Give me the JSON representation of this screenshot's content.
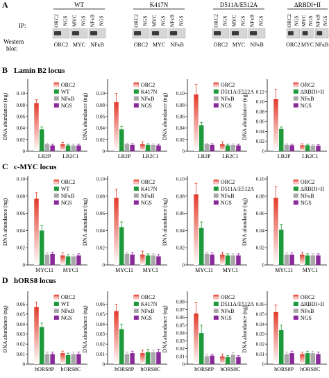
{
  "figure": {
    "panel_letters": [
      "A",
      "B",
      "C",
      "D"
    ],
    "section_titles": {
      "B": "Lamin B2 locus",
      "C": "c-MYC locus",
      "D": "hORS8 locus"
    },
    "ip_label": "IP:",
    "western_label": [
      "Western",
      "blot:"
    ],
    "conditions": [
      "WT",
      "K417N",
      "D511A/E512A",
      "ΔRBDI+II"
    ],
    "ip_lanes": [
      "ORC2",
      "NGS",
      "MYC",
      "NGS",
      "NFκB",
      "NGS"
    ],
    "western_lanes": [
      "ORC2",
      "MYC",
      "NFκB"
    ]
  },
  "chart_data": [
    {
      "type": "bar",
      "panel": "B",
      "title": "",
      "xlabel": "",
      "ylabel": "DNA abundance (ng)",
      "ylim": [
        0,
        0.12
      ],
      "yticks": [
        0,
        0.02,
        0.04,
        0.06,
        0.08,
        0.1
      ],
      "ytick_labels": [
        "0",
        "0.02",
        "0.04",
        "0.06",
        "0.08",
        "0.10"
      ],
      "categories": [
        "LB2P",
        "LB2C1"
      ],
      "series": [
        {
          "name": "ORC2",
          "values": [
            0.083,
            0.012
          ]
        },
        {
          "name": "WT",
          "values": [
            0.038,
            0.01
          ]
        },
        {
          "name": "NFκB",
          "values": [
            0.012,
            0.01
          ]
        },
        {
          "name": "NGS",
          "values": [
            0.01,
            0.01
          ]
        }
      ],
      "errors": [
        [
          0.006,
          0.003
        ],
        [
          0.004,
          0.002
        ],
        [
          0.002,
          0.002
        ],
        [
          0.002,
          0.002
        ]
      ]
    },
    {
      "type": "bar",
      "panel": "B",
      "title": "",
      "xlabel": "",
      "ylabel": "DNA abundance (ng)",
      "ylim": [
        0,
        0.12
      ],
      "yticks": [
        0,
        0.02,
        0.04,
        0.06,
        0.08,
        0.1
      ],
      "ytick_labels": [
        "0",
        "0.02",
        "0.04",
        "0.06",
        "0.08",
        "0.10"
      ],
      "categories": [
        "LB2P",
        "LB2C1"
      ],
      "series": [
        {
          "name": "ORC2",
          "values": [
            0.085,
            0.012
          ]
        },
        {
          "name": "K417N",
          "values": [
            0.038,
            0.011
          ]
        },
        {
          "name": "NFκB",
          "values": [
            0.012,
            0.011
          ]
        },
        {
          "name": "NGS",
          "values": [
            0.011,
            0.01
          ]
        }
      ],
      "errors": [
        [
          0.015,
          0.004
        ],
        [
          0.005,
          0.002
        ],
        [
          0.002,
          0.002
        ],
        [
          0.002,
          0.002
        ]
      ]
    },
    {
      "type": "bar",
      "panel": "B",
      "title": "",
      "xlabel": "",
      "ylabel": "DNA abundance (ng)",
      "ylim": [
        0,
        0.12
      ],
      "yticks": [
        0,
        0.02,
        0.04,
        0.06,
        0.08,
        0.1
      ],
      "ytick_labels": [
        "0",
        "0.02",
        "0.04",
        "0.06",
        "0.08",
        "0.10"
      ],
      "categories": [
        "LB2P",
        "LB2C1"
      ],
      "series": [
        {
          "name": "ORC2",
          "values": [
            0.098,
            0.012
          ]
        },
        {
          "name": "D511A/E512A",
          "values": [
            0.045,
            0.01
          ]
        },
        {
          "name": "NFκB",
          "values": [
            0.012,
            0.011
          ]
        },
        {
          "name": "NGS",
          "values": [
            0.011,
            0.01
          ]
        }
      ],
      "errors": [
        [
          0.018,
          0.004
        ],
        [
          0.005,
          0.002
        ],
        [
          0.002,
          0.002
        ],
        [
          0.002,
          0.002
        ]
      ]
    },
    {
      "type": "bar",
      "panel": "B",
      "title": "",
      "xlabel": "",
      "ylabel": "DNA abundance (ng)",
      "ylim": [
        0,
        0.14
      ],
      "yticks": [
        0,
        0.02,
        0.04,
        0.06,
        0.08,
        0.1,
        0.12
      ],
      "ytick_labels": [
        "0",
        "0.02",
        "0.04",
        "0.06",
        "0.08",
        "0.10",
        "0.12"
      ],
      "categories": [
        "LB2P",
        "LB2C1"
      ],
      "series": [
        {
          "name": "ORC2",
          "values": [
            0.105,
            0.012
          ]
        },
        {
          "name": "ΔRBDI+II",
          "values": [
            0.045,
            0.012
          ]
        },
        {
          "name": "NFκB",
          "values": [
            0.013,
            0.011
          ]
        },
        {
          "name": "NGS",
          "values": [
            0.012,
            0.011
          ]
        }
      ],
      "errors": [
        [
          0.02,
          0.003
        ],
        [
          0.004,
          0.002
        ],
        [
          0.002,
          0.002
        ],
        [
          0.002,
          0.002
        ]
      ]
    },
    {
      "type": "bar",
      "panel": "C",
      "title": "",
      "xlabel": "",
      "ylabel": "DNA abundance (ng)",
      "ylim": [
        0,
        0.1
      ],
      "yticks": [
        0,
        0.02,
        0.04,
        0.06,
        0.08,
        0.1
      ],
      "ytick_labels": [
        "0",
        "0.02",
        "0.04",
        "0.06",
        "0.08",
        "0.10"
      ],
      "categories": [
        "MYC11",
        "MYC1"
      ],
      "series": [
        {
          "name": "ORC2",
          "values": [
            0.077,
            0.011
          ]
        },
        {
          "name": "WT",
          "values": [
            0.04,
            0.01
          ]
        },
        {
          "name": "NFκB",
          "values": [
            0.012,
            0.01
          ]
        },
        {
          "name": "NGS",
          "values": [
            0.013,
            0.011
          ]
        }
      ],
      "errors": [
        [
          0.007,
          0.003
        ],
        [
          0.006,
          0.002
        ],
        [
          0.002,
          0.002
        ],
        [
          0.002,
          0.002
        ]
      ]
    },
    {
      "type": "bar",
      "panel": "C",
      "title": "",
      "xlabel": "",
      "ylabel": "DNA abundance (ng)",
      "ylim": [
        0,
        0.1
      ],
      "yticks": [
        0,
        0.02,
        0.04,
        0.06,
        0.08,
        0.1
      ],
      "ytick_labels": [
        "0",
        "0.02",
        "0.04",
        "0.06",
        "0.08",
        "0.10"
      ],
      "categories": [
        "MYC11",
        "MYC1"
      ],
      "series": [
        {
          "name": "ORC2",
          "values": [
            0.078,
            0.012
          ]
        },
        {
          "name": "K417N",
          "values": [
            0.044,
            0.011
          ]
        },
        {
          "name": "NFκB",
          "values": [
            0.013,
            0.011
          ]
        },
        {
          "name": "NGS",
          "values": [
            0.012,
            0.01
          ]
        }
      ],
      "errors": [
        [
          0.01,
          0.004
        ],
        [
          0.006,
          0.002
        ],
        [
          0.002,
          0.002
        ],
        [
          0.002,
          0.002
        ]
      ]
    },
    {
      "type": "bar",
      "panel": "C",
      "title": "",
      "xlabel": "",
      "ylabel": "DNA abundance (ng)",
      "ylim": [
        0,
        0.1
      ],
      "yticks": [
        0,
        0.02,
        0.04,
        0.06,
        0.08,
        0.1
      ],
      "ytick_labels": [
        "0",
        "0.02",
        "0.04",
        "0.06",
        "0.08",
        "0.10"
      ],
      "categories": [
        "MYC11",
        "MYC1"
      ],
      "series": [
        {
          "name": "ORC2",
          "values": [
            0.082,
            0.012
          ]
        },
        {
          "name": "D511A/E512A",
          "values": [
            0.043,
            0.011
          ]
        },
        {
          "name": "NFκB",
          "values": [
            0.013,
            0.011
          ]
        },
        {
          "name": "NGS",
          "values": [
            0.012,
            0.011
          ]
        }
      ],
      "errors": [
        [
          0.013,
          0.003
        ],
        [
          0.007,
          0.002
        ],
        [
          0.002,
          0.002
        ],
        [
          0.002,
          0.002
        ]
      ]
    },
    {
      "type": "bar",
      "panel": "C",
      "title": "",
      "xlabel": "",
      "ylabel": "DNA abundance (ng)",
      "ylim": [
        0,
        0.1
      ],
      "yticks": [
        0,
        0.02,
        0.04,
        0.06,
        0.08,
        0.1
      ],
      "ytick_labels": [
        "0",
        "0.02",
        "0.04",
        "0.06",
        "0.08",
        "0.10"
      ],
      "categories": [
        "MYC11",
        "MYC1"
      ],
      "series": [
        {
          "name": "ORC2",
          "values": [
            0.078,
            0.012
          ]
        },
        {
          "name": "ΔRBDI+II",
          "values": [
            0.041,
            0.011
          ]
        },
        {
          "name": "NFκB",
          "values": [
            0.012,
            0.011
          ]
        },
        {
          "name": "NGS",
          "values": [
            0.012,
            0.011
          ]
        }
      ],
      "errors": [
        [
          0.013,
          0.003
        ],
        [
          0.006,
          0.002
        ],
        [
          0.002,
          0.002
        ],
        [
          0.002,
          0.002
        ]
      ]
    },
    {
      "type": "bar",
      "panel": "D",
      "title": "",
      "xlabel": "",
      "ylabel": "DNA abundance (ng)",
      "ylim": [
        0,
        0.07
      ],
      "yticks": [
        0,
        0.01,
        0.02,
        0.03,
        0.04,
        0.05,
        0.06
      ],
      "ytick_labels": [
        "0",
        "0.01",
        "0.02",
        "0.03",
        "0.04",
        "0.05",
        "0.06"
      ],
      "categories": [
        "hORS8P",
        "hORS8C"
      ],
      "series": [
        {
          "name": "ORC2",
          "values": [
            0.057,
            0.011
          ]
        },
        {
          "name": "WT",
          "values": [
            0.037,
            0.009
          ]
        },
        {
          "name": "NFκB",
          "values": [
            0.01,
            0.01
          ]
        },
        {
          "name": "NGS",
          "values": [
            0.01,
            0.01
          ]
        }
      ],
      "errors": [
        [
          0.005,
          0.002
        ],
        [
          0.004,
          0.002
        ],
        [
          0.002,
          0.002
        ],
        [
          0.002,
          0.002
        ]
      ]
    },
    {
      "type": "bar",
      "panel": "D",
      "title": "",
      "xlabel": "",
      "ylabel": "DNA abundance (ng)",
      "ylim": [
        0,
        0.07
      ],
      "yticks": [
        0,
        0.01,
        0.02,
        0.03,
        0.04,
        0.05,
        0.06
      ],
      "ytick_labels": [
        "0",
        "0.01",
        "0.02",
        "0.03",
        "0.04",
        "0.05",
        "0.06"
      ],
      "categories": [
        "hORS8P",
        "hORS8C"
      ],
      "series": [
        {
          "name": "ORC2",
          "values": [
            0.053,
            0.011
          ]
        },
        {
          "name": "K417N",
          "values": [
            0.035,
            0.012
          ]
        },
        {
          "name": "NFκB",
          "values": [
            0.01,
            0.012
          ]
        },
        {
          "name": "NGS",
          "values": [
            0.011,
            0.012
          ]
        }
      ],
      "errors": [
        [
          0.007,
          0.003
        ],
        [
          0.005,
          0.003
        ],
        [
          0.002,
          0.002
        ],
        [
          0.002,
          0.003
        ]
      ]
    },
    {
      "type": "bar",
      "panel": "D",
      "title": "",
      "xlabel": "",
      "ylabel": "DNA abundance (ng)",
      "ylim": [
        0,
        0.09
      ],
      "yticks": [
        0,
        0.01,
        0.02,
        0.03,
        0.04,
        0.05,
        0.06,
        0.07,
        0.08
      ],
      "ytick_labels": [
        "0",
        "0.01",
        "0.02",
        "0.03",
        "0.04",
        "0.05",
        "0.06",
        "0.07",
        "0.08"
      ],
      "categories": [
        "hORS8P",
        "hORS8C"
      ],
      "series": [
        {
          "name": "ORC2",
          "values": [
            0.065,
            0.01
          ]
        },
        {
          "name": "D511A/E512A",
          "values": [
            0.04,
            0.009
          ]
        },
        {
          "name": "NFκB",
          "values": [
            0.01,
            0.012
          ]
        },
        {
          "name": "NGS",
          "values": [
            0.011,
            0.009
          ]
        }
      ],
      "errors": [
        [
          0.014,
          0.003
        ],
        [
          0.01,
          0.002
        ],
        [
          0.003,
          0.003
        ],
        [
          0.002,
          0.002
        ]
      ]
    },
    {
      "type": "bar",
      "panel": "D",
      "title": "",
      "xlabel": "",
      "ylabel": "DNA abundance (ng)",
      "ylim": [
        0,
        0.07
      ],
      "yticks": [
        0,
        0.01,
        0.02,
        0.03,
        0.04,
        0.05,
        0.06
      ],
      "ytick_labels": [
        "0",
        "0.01",
        "0.02",
        "0.03",
        "0.04",
        "0.05",
        "0.06"
      ],
      "categories": [
        "hORS8P",
        "hORS8C"
      ],
      "series": [
        {
          "name": "ORC2",
          "values": [
            0.052,
            0.01
          ]
        },
        {
          "name": "ΔRBDI+II",
          "values": [
            0.034,
            0.011
          ]
        },
        {
          "name": "NFκB",
          "values": [
            0.01,
            0.011
          ]
        },
        {
          "name": "NGS",
          "values": [
            0.011,
            0.01
          ]
        }
      ],
      "errors": [
        [
          0.007,
          0.002
        ],
        [
          0.005,
          0.002
        ],
        [
          0.002,
          0.002
        ],
        [
          0.002,
          0.002
        ]
      ]
    }
  ],
  "colors": {
    "orc2": "#e23b2a",
    "green": "#1f9a3a",
    "nfkb": "#a8a8a8",
    "ngs": "#8a2a9a"
  }
}
